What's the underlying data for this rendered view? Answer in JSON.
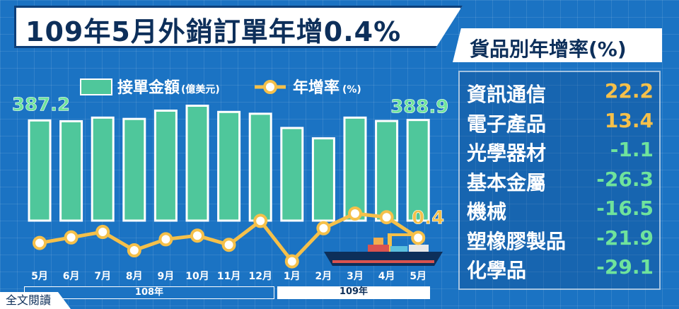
{
  "header": {
    "title": "109年5月外銷訂單年增0.4%"
  },
  "rate_panel": {
    "title": "貨品別年增率(%)",
    "items": [
      {
        "label": "資訊通信",
        "value": "22.2",
        "color": "#f5c04a"
      },
      {
        "label": "電子產品",
        "value": "13.4",
        "color": "#f5c04a"
      },
      {
        "label": "光學器材",
        "value": "-1.1",
        "color": "#6fe39c"
      },
      {
        "label": "基本金屬",
        "value": "-26.3",
        "color": "#6fe39c"
      },
      {
        "label": "機械",
        "value": "-16.5",
        "color": "#6fe39c"
      },
      {
        "label": "塑橡膠製品",
        "value": "-21.9",
        "color": "#6fe39c"
      },
      {
        "label": "化學品",
        "value": "-29.1",
        "color": "#6fe39c"
      }
    ]
  },
  "legend": {
    "bar_label": "接單金額",
    "bar_unit": "(億美元)",
    "line_label": "年增率",
    "line_unit": "(%)"
  },
  "years": {
    "y108": "108年",
    "y109": "109年"
  },
  "footer": {
    "read_more": "全文閱讀"
  },
  "colors": {
    "bar": "#4fc79b",
    "bar_border": "#ffffff",
    "line": "#f5c04a",
    "first_label": "#6fe39c",
    "last_rate": "#f5c04a"
  },
  "chart_data": {
    "type": "bar",
    "categories": [
      "5月",
      "6月",
      "7月",
      "8月",
      "9月",
      "10月",
      "11月",
      "12月",
      "1月",
      "2月",
      "3月",
      "4月",
      "5月"
    ],
    "series": [
      {
        "name": "接單金額",
        "values": [
          387.2,
          384,
          398,
          393,
          425,
          444,
          420,
          413,
          358,
          318,
          398,
          385,
          388.9
        ]
      },
      {
        "name": "年增率",
        "values": [
          -1.0,
          0.5,
          2.0,
          -3.0,
          0.0,
          1.0,
          -1.5,
          5.0,
          -6.0,
          3.0,
          7.0,
          6.0,
          0.4
        ]
      }
    ],
    "data_labels": {
      "first": "387.2",
      "last": "388.9",
      "last_rate": "0.4"
    },
    "bar_ylim": [
      0,
      470
    ],
    "line_ylim": [
      -8,
      12
    ]
  }
}
